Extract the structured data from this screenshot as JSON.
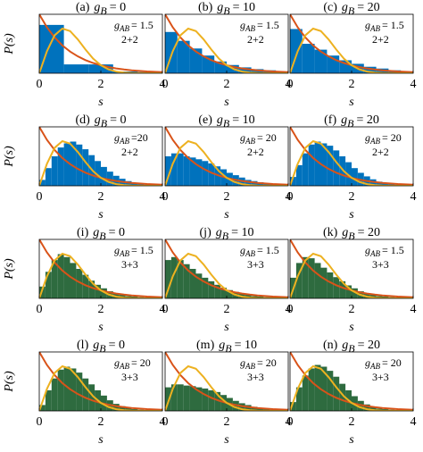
{
  "reference_curves": {
    "x": [
      0,
      0.25,
      0.5,
      0.75,
      1,
      1.25,
      1.5,
      1.75,
      2,
      2.25,
      2.5,
      2.75,
      3,
      3.25,
      3.5,
      3.75,
      4
    ],
    "series": [
      {
        "color": "#d95319",
        "values": [
          1,
          0.779,
          0.607,
          0.472,
          0.368,
          0.287,
          0.223,
          0.174,
          0.135,
          0.105,
          0.082,
          0.064,
          0.05,
          0.039,
          0.03,
          0.024,
          0.018
        ]
      },
      {
        "color": "#edb120",
        "values": [
          0,
          0.374,
          0.645,
          0.757,
          0.716,
          0.575,
          0.403,
          0.248,
          0.136,
          0.066,
          0.029,
          0.011,
          0.004,
          0.001,
          0,
          0,
          0
        ]
      }
    ]
  },
  "chart_data": [
    {
      "type": "histogram",
      "panel": "(a)",
      "param": "g",
      "param_sub": "B",
      "param_value": "= 0",
      "coupling": "g",
      "coupling_sub": "AB",
      "coupling_value": "= 1.5",
      "system": "2+2",
      "xlabel": "s",
      "ylabel": "P(s)",
      "color": "#0072bd",
      "xlim": [
        0,
        4
      ],
      "ylim": [
        0,
        1
      ],
      "xticks": [
        0,
        2,
        4
      ],
      "bins": [
        0,
        0.8,
        1.6,
        2.4,
        3.2,
        4
      ],
      "values": [
        0.82,
        0.15,
        0.15,
        0.03,
        0.02
      ]
    },
    {
      "type": "histogram",
      "panel": "(b)",
      "param": "g",
      "param_sub": "B",
      "param_value": "= 10",
      "coupling": "g",
      "coupling_sub": "AB",
      "coupling_value": "= 1.5",
      "system": "2+2",
      "xlabel": "s",
      "color": "#0072bd",
      "xlim": [
        0,
        4
      ],
      "ylim": [
        0,
        1
      ],
      "xticks": [
        0,
        2,
        4
      ],
      "bins": [
        0,
        0.4,
        0.8,
        1.2,
        1.6,
        2,
        2.4,
        2.8,
        3.2,
        3.6,
        4
      ],
      "values": [
        0.7,
        0.55,
        0.42,
        0.3,
        0.2,
        0.14,
        0.1,
        0.07,
        0.05,
        0.03
      ]
    },
    {
      "type": "histogram",
      "panel": "(c)",
      "param": "g",
      "param_sub": "B",
      "param_value": "= 20",
      "coupling": "g",
      "coupling_sub": "AB",
      "coupling_value": "= 1.5",
      "system": "2+2",
      "xlabel": "s",
      "color": "#0072bd",
      "xlim": [
        0,
        4
      ],
      "ylim": [
        0,
        1
      ],
      "xticks": [
        0,
        2,
        4
      ],
      "bins": [
        0,
        0.4,
        0.8,
        1.2,
        1.6,
        2,
        2.4,
        2.8,
        3.2,
        3.6,
        4
      ],
      "values": [
        0.75,
        0.5,
        0.4,
        0.3,
        0.22,
        0.16,
        0.11,
        0.08,
        0.05,
        0.03
      ]
    },
    {
      "type": "histogram",
      "panel": "(d)",
      "param": "g",
      "param_sub": "B",
      "param_value": "= 0",
      "coupling": "g",
      "coupling_sub": "AB",
      "coupling_value": "=20",
      "system": "2+2",
      "xlabel": "s",
      "ylabel": "P(s)",
      "color": "#0072bd",
      "xlim": [
        0,
        4
      ],
      "ylim": [
        0,
        1
      ],
      "xticks": [
        0,
        2,
        4
      ],
      "bins": [
        0,
        0.2,
        0.4,
        0.6,
        0.8,
        1,
        1.2,
        1.4,
        1.6,
        1.8,
        2,
        2.2,
        2.4,
        2.6,
        2.8,
        3,
        3.2,
        3.4,
        3.6,
        3.8,
        4
      ],
      "values": [
        0.1,
        0.3,
        0.5,
        0.65,
        0.72,
        0.75,
        0.7,
        0.62,
        0.52,
        0.42,
        0.32,
        0.24,
        0.17,
        0.12,
        0.08,
        0.05,
        0.03,
        0.02,
        0.01,
        0.01
      ]
    },
    {
      "type": "histogram",
      "panel": "(e)",
      "param": "g",
      "param_sub": "B",
      "param_value": "= 10",
      "coupling": "g",
      "coupling_sub": "AB",
      "coupling_value": "= 20",
      "system": "2+2",
      "xlabel": "s",
      "color": "#0072bd",
      "xlim": [
        0,
        4
      ],
      "ylim": [
        0,
        1
      ],
      "xticks": [
        0,
        2,
        4
      ],
      "bins": [
        0,
        0.2,
        0.4,
        0.6,
        0.8,
        1,
        1.2,
        1.4,
        1.6,
        1.8,
        2,
        2.2,
        2.4,
        2.6,
        2.8,
        3,
        3.2,
        3.4,
        3.6,
        3.8,
        4
      ],
      "values": [
        0.5,
        0.55,
        0.55,
        0.5,
        0.48,
        0.45,
        0.42,
        0.38,
        0.33,
        0.28,
        0.22,
        0.18,
        0.14,
        0.1,
        0.08,
        0.06,
        0.04,
        0.03,
        0.02,
        0.01
      ]
    },
    {
      "type": "histogram",
      "panel": "(f)",
      "param": "g",
      "param_sub": "B",
      "param_value": "= 20",
      "coupling": "g",
      "coupling_sub": "AB",
      "coupling_value": "= 20",
      "system": "2+2",
      "xlabel": "s",
      "color": "#0072bd",
      "xlim": [
        0,
        4
      ],
      "ylim": [
        0,
        1
      ],
      "xticks": [
        0,
        2,
        4
      ],
      "bins": [
        0,
        0.2,
        0.4,
        0.6,
        0.8,
        1,
        1.2,
        1.4,
        1.6,
        1.8,
        2,
        2.2,
        2.4,
        2.6,
        2.8,
        3,
        3.2,
        3.4,
        3.6,
        3.8,
        4
      ],
      "values": [
        0.15,
        0.35,
        0.55,
        0.7,
        0.75,
        0.72,
        0.68,
        0.6,
        0.5,
        0.4,
        0.3,
        0.22,
        0.16,
        0.11,
        0.07,
        0.05,
        0.03,
        0.02,
        0.01,
        0.01
      ]
    },
    {
      "type": "histogram",
      "panel": "(i)",
      "param": "g",
      "param_sub": "B",
      "param_value": "= 0",
      "coupling": "g",
      "coupling_sub": "AB",
      "coupling_value": "= 1.5",
      "system": "3+3",
      "xlabel": "s",
      "ylabel": "P(s)",
      "color": "#2e6b3f",
      "xlim": [
        0,
        4
      ],
      "ylim": [
        0,
        1
      ],
      "xticks": [
        0,
        2,
        4
      ],
      "bins": [
        0,
        0.2,
        0.4,
        0.6,
        0.8,
        1,
        1.2,
        1.4,
        1.6,
        1.8,
        2,
        2.2,
        2.4,
        2.6,
        2.8,
        3,
        3.2,
        3.4,
        3.6,
        3.8,
        4
      ],
      "values": [
        0.2,
        0.45,
        0.65,
        0.75,
        0.7,
        0.6,
        0.5,
        0.4,
        0.3,
        0.23,
        0.17,
        0.12,
        0.09,
        0.06,
        0.04,
        0.03,
        0.02,
        0.01,
        0.01,
        0
      ]
    },
    {
      "type": "histogram",
      "panel": "(j)",
      "param": "g",
      "param_sub": "B",
      "param_value": "= 10",
      "coupling": "g",
      "coupling_sub": "AB",
      "coupling_value": "= 1.5",
      "system": "3+3",
      "xlabel": "s",
      "color": "#2e6b3f",
      "xlim": [
        0,
        4
      ],
      "ylim": [
        0,
        1
      ],
      "xticks": [
        0,
        2,
        4
      ],
      "bins": [
        0,
        0.2,
        0.4,
        0.6,
        0.8,
        1,
        1.2,
        1.4,
        1.6,
        1.8,
        2,
        2.2,
        2.4,
        2.6,
        2.8,
        3,
        3.2,
        3.4,
        3.6,
        3.8,
        4
      ],
      "values": [
        0.65,
        0.7,
        0.65,
        0.58,
        0.5,
        0.42,
        0.35,
        0.29,
        0.23,
        0.18,
        0.14,
        0.11,
        0.08,
        0.06,
        0.04,
        0.03,
        0.02,
        0.02,
        0.01,
        0.01
      ]
    },
    {
      "type": "histogram",
      "panel": "(k)",
      "param": "g",
      "param_sub": "B",
      "param_value": "= 20",
      "coupling": "g",
      "coupling_sub": "AB",
      "coupling_value": "= 1.5",
      "system": "3+3",
      "xlabel": "s",
      "color": "#2e6b3f",
      "xlim": [
        0,
        4
      ],
      "ylim": [
        0,
        1
      ],
      "xticks": [
        0,
        2,
        4
      ],
      "bins": [
        0,
        0.2,
        0.4,
        0.6,
        0.8,
        1,
        1.2,
        1.4,
        1.6,
        1.8,
        2,
        2.2,
        2.4,
        2.6,
        2.8,
        3,
        3.2,
        3.4,
        3.6,
        3.8,
        4
      ],
      "values": [
        0.35,
        0.6,
        0.7,
        0.68,
        0.6,
        0.52,
        0.44,
        0.36,
        0.29,
        0.22,
        0.17,
        0.12,
        0.09,
        0.06,
        0.04,
        0.03,
        0.02,
        0.01,
        0.01,
        0
      ]
    },
    {
      "type": "histogram",
      "panel": "(l)",
      "param": "g",
      "param_sub": "B",
      "param_value": "= 0",
      "coupling": "g",
      "coupling_sub": "AB",
      "coupling_value": "= 20",
      "system": "3+3",
      "xlabel": "s",
      "ylabel": "P(s)",
      "color": "#2e6b3f",
      "xlim": [
        0,
        4
      ],
      "ylim": [
        0,
        1
      ],
      "xticks": [
        0,
        2,
        4
      ],
      "bins": [
        0,
        0.2,
        0.4,
        0.6,
        0.8,
        1,
        1.2,
        1.4,
        1.6,
        1.8,
        2,
        2.2,
        2.4,
        2.6,
        2.8,
        3,
        3.2,
        3.4,
        3.6,
        3.8,
        4
      ],
      "values": [
        0.1,
        0.35,
        0.55,
        0.7,
        0.75,
        0.72,
        0.65,
        0.55,
        0.45,
        0.35,
        0.26,
        0.18,
        0.12,
        0.08,
        0.05,
        0.03,
        0.02,
        0.01,
        0.01,
        0
      ]
    },
    {
      "type": "histogram",
      "panel": "(m)",
      "param": "g",
      "param_sub": "B",
      "param_value": "= 10",
      "coupling": "g",
      "coupling_sub": "AB",
      "coupling_value": "= 20",
      "system": "3+3",
      "xlabel": "s",
      "color": "#2e6b3f",
      "xlim": [
        0,
        4
      ],
      "ylim": [
        0,
        1
      ],
      "xticks": [
        0,
        2,
        4
      ],
      "bins": [
        0,
        0.2,
        0.4,
        0.6,
        0.8,
        1,
        1.2,
        1.4,
        1.6,
        1.8,
        2,
        2.2,
        2.4,
        2.6,
        2.8,
        3,
        3.2,
        3.4,
        3.6,
        3.8,
        4
      ],
      "values": [
        0.4,
        0.45,
        0.45,
        0.43,
        0.42,
        0.4,
        0.38,
        0.35,
        0.32,
        0.27,
        0.22,
        0.17,
        0.13,
        0.1,
        0.07,
        0.05,
        0.03,
        0.02,
        0.01,
        0.01
      ]
    },
    {
      "type": "histogram",
      "panel": "(n)",
      "param": "g",
      "param_sub": "B",
      "param_value": "= 20",
      "coupling": "g",
      "coupling_sub": "AB",
      "coupling_value": "= 20",
      "system": "3+3",
      "xlabel": "s",
      "color": "#2e6b3f",
      "xlim": [
        0,
        4
      ],
      "ylim": [
        0,
        1
      ],
      "xticks": [
        0,
        2,
        4
      ],
      "bins": [
        0,
        0.2,
        0.4,
        0.6,
        0.8,
        1,
        1.2,
        1.4,
        1.6,
        1.8,
        2,
        2.2,
        2.4,
        2.6,
        2.8,
        3,
        3.2,
        3.4,
        3.6,
        3.8,
        4
      ],
      "values": [
        0.15,
        0.4,
        0.6,
        0.72,
        0.78,
        0.75,
        0.68,
        0.58,
        0.46,
        0.35,
        0.25,
        0.17,
        0.11,
        0.07,
        0.04,
        0.03,
        0.02,
        0.01,
        0.01,
        0
      ]
    }
  ]
}
